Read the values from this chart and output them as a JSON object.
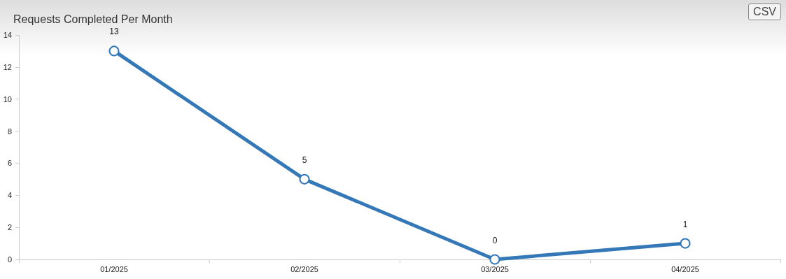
{
  "chart_data": {
    "type": "line",
    "title": "Requests Completed Per Month",
    "categories": [
      "01/2025",
      "02/2025",
      "03/2025",
      "04/2025"
    ],
    "series": [
      {
        "color": "#3578b8",
        "values": [
          13,
          5,
          0,
          1
        ]
      }
    ],
    "ylim": [
      0,
      14
    ],
    "yticks": [
      0,
      2,
      4,
      6,
      8,
      10,
      12,
      14
    ],
    "grid": false,
    "marker": "circle",
    "line_style": "solid",
    "data_labels": true,
    "annotations": [
      "CSV"
    ]
  }
}
